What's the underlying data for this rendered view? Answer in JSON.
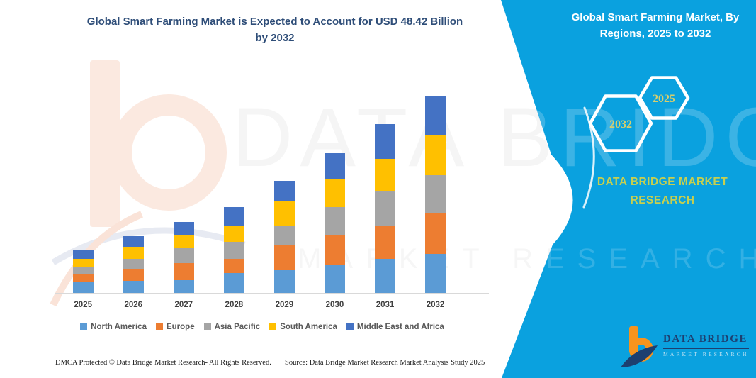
{
  "title": {
    "line1": "Global Smart Farming Market is Expected to Account for USD 48.42 Billion",
    "line2": "by 2032"
  },
  "side_panel": {
    "title_line1": "Global Smart Farming Market, By",
    "title_line2": "Regions, 2025 to 2032",
    "hexagon_left_year": "2032",
    "hexagon_right_year": "2025",
    "brand_text": "DATA BRIDGE MARKET RESEARCH"
  },
  "watermark": {
    "line1": "DATA BRIDGE",
    "line2": "MARKET RESEARCH"
  },
  "logo": {
    "title": "DATA BRIDGE",
    "subtitle": "MARKET RESEARCH"
  },
  "footer": {
    "dmca": "DMCA Protected © Data Bridge Market Research-  All Rights Reserved.",
    "source": "Source: Data Bridge Market Research  Market Analysis Study 2025"
  },
  "chart_data": {
    "type": "bar",
    "stacked": true,
    "title": "Global Smart Farming Market, By Regions, 2025 to 2032",
    "unit": "USD Billion",
    "annotation": "Expected to account for USD 48.42 Billion by 2032",
    "categories": [
      "2025",
      "2026",
      "2027",
      "2028",
      "2029",
      "2030",
      "2031",
      "2032"
    ],
    "series": [
      {
        "name": "North America",
        "color": "#5B9BD5",
        "values": [
          2.6,
          2.9,
          3.2,
          4.8,
          5.5,
          7.0,
          8.3,
          9.57
        ]
      },
      {
        "name": "Europe",
        "color": "#ED7D31",
        "values": [
          2.1,
          2.9,
          4.1,
          3.6,
          6.1,
          7.1,
          8.1,
          9.86
        ]
      },
      {
        "name": "Asia Pacific",
        "color": "#A5A5A5",
        "values": [
          1.8,
          2.5,
          3.7,
          4.2,
          4.9,
          6.9,
          8.5,
          9.57
        ]
      },
      {
        "name": "South America",
        "color": "#FFC000",
        "values": [
          1.8,
          3.0,
          3.3,
          3.9,
          6.1,
          7.0,
          8.1,
          9.86
        ]
      },
      {
        "name": "Middle East and Africa",
        "color": "#4472C4",
        "values": [
          2.2,
          2.6,
          3.2,
          4.5,
          4.9,
          6.4,
          8.4,
          9.56
        ]
      }
    ],
    "y_axis_visible": false,
    "grid": false,
    "legend_position": "bottom"
  },
  "colors": {
    "panel_blue": "#0AA1DF",
    "title_text": "#2E4D78",
    "brand_yellow_green": "#C6CF50",
    "hex_year_text": "#D6CE6E",
    "logo_orange": "#F7941D",
    "logo_navy": "#1D3F70",
    "axis_label": "#3F3F3F",
    "legend_text": "#595959",
    "watermark_peach": "#FBE9E0"
  }
}
